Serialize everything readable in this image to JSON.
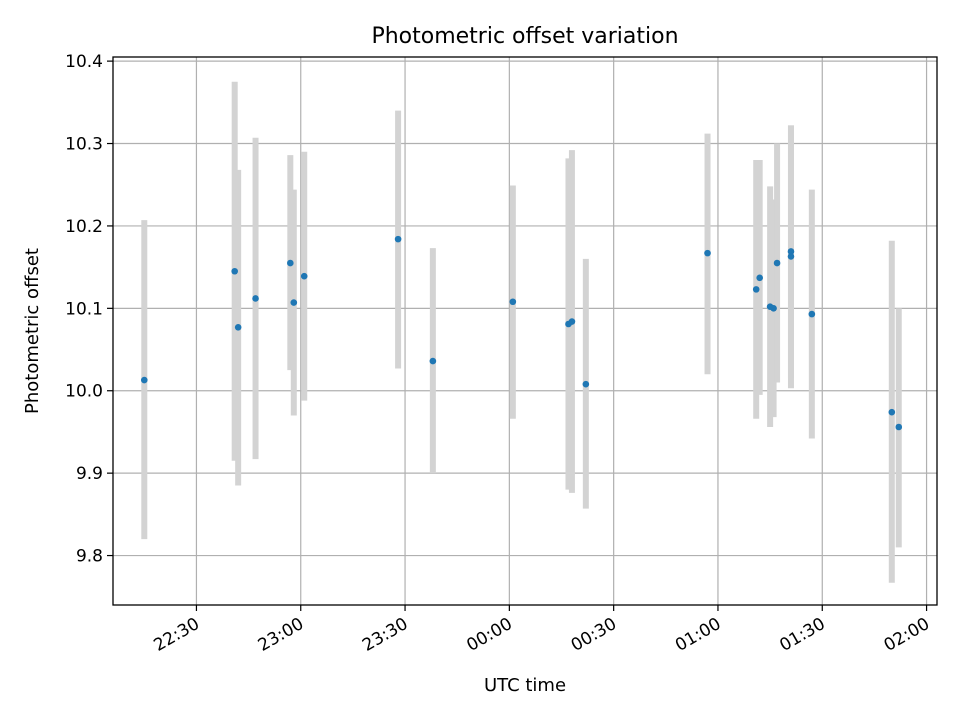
{
  "chart_data": {
    "type": "scatter",
    "title": "Photometric offset variation",
    "xlabel": "UTC time",
    "ylabel": "Photometric offset",
    "x_tick_labels": [
      "22:30",
      "23:00",
      "23:30",
      "00:00",
      "00:30",
      "01:00",
      "01:30",
      "02:00"
    ],
    "y_tick_labels": [
      "9.8",
      "9.9",
      "10.0",
      "10.1",
      "10.2",
      "10.3",
      "10.4"
    ],
    "ylim": [
      9.74,
      10.405
    ],
    "xlim": [
      "22:06",
      "02:03"
    ],
    "grid": true,
    "colors": {
      "point": "#1f77b4",
      "errorbar": "#d3d3d3",
      "grid": "#b0b0b0"
    },
    "points": [
      {
        "t": "22:15",
        "y": 10.013,
        "lo": 9.82,
        "hi": 10.207
      },
      {
        "t": "22:41",
        "y": 10.145,
        "lo": 9.915,
        "hi": 10.375
      },
      {
        "t": "22:42",
        "y": 10.077,
        "lo": 9.885,
        "hi": 10.268
      },
      {
        "t": "22:47",
        "y": 10.112,
        "lo": 9.917,
        "hi": 10.307
      },
      {
        "t": "22:57",
        "y": 10.155,
        "lo": 10.025,
        "hi": 10.286
      },
      {
        "t": "22:58",
        "y": 10.107,
        "lo": 9.97,
        "hi": 10.244
      },
      {
        "t": "23:01",
        "y": 10.139,
        "lo": 9.988,
        "hi": 10.29
      },
      {
        "t": "23:28",
        "y": 10.184,
        "lo": 10.027,
        "hi": 10.34
      },
      {
        "t": "23:38",
        "y": 10.036,
        "lo": 9.9,
        "hi": 10.173
      },
      {
        "t": "00:01",
        "y": 10.108,
        "lo": 9.966,
        "hi": 10.249
      },
      {
        "t": "00:17",
        "y": 10.081,
        "lo": 9.88,
        "hi": 10.282
      },
      {
        "t": "00:18",
        "y": 10.084,
        "lo": 9.876,
        "hi": 10.292
      },
      {
        "t": "00:22",
        "y": 10.008,
        "lo": 9.857,
        "hi": 10.16
      },
      {
        "t": "00:57",
        "y": 10.167,
        "lo": 10.02,
        "hi": 10.312
      },
      {
        "t": "01:11",
        "y": 10.123,
        "lo": 9.966,
        "hi": 10.28
      },
      {
        "t": "01:12",
        "y": 10.137,
        "lo": 9.995,
        "hi": 10.28
      },
      {
        "t": "01:15",
        "y": 10.102,
        "lo": 9.956,
        "hi": 10.248
      },
      {
        "t": "01:16",
        "y": 10.1,
        "lo": 9.968,
        "hi": 10.232
      },
      {
        "t": "01:17",
        "y": 10.155,
        "lo": 10.01,
        "hi": 10.3
      },
      {
        "t": "01:21",
        "y": 10.169,
        "lo": 10.015,
        "hi": 10.322
      },
      {
        "t": "01:21",
        "y": 10.163,
        "lo": 10.003,
        "hi": 10.322
      },
      {
        "t": "01:27",
        "y": 10.093,
        "lo": 9.942,
        "hi": 10.244
      },
      {
        "t": "01:50",
        "y": 9.974,
        "lo": 9.767,
        "hi": 10.182
      },
      {
        "t": "01:52",
        "y": 9.956,
        "lo": 9.81,
        "hi": 10.1
      }
    ]
  }
}
